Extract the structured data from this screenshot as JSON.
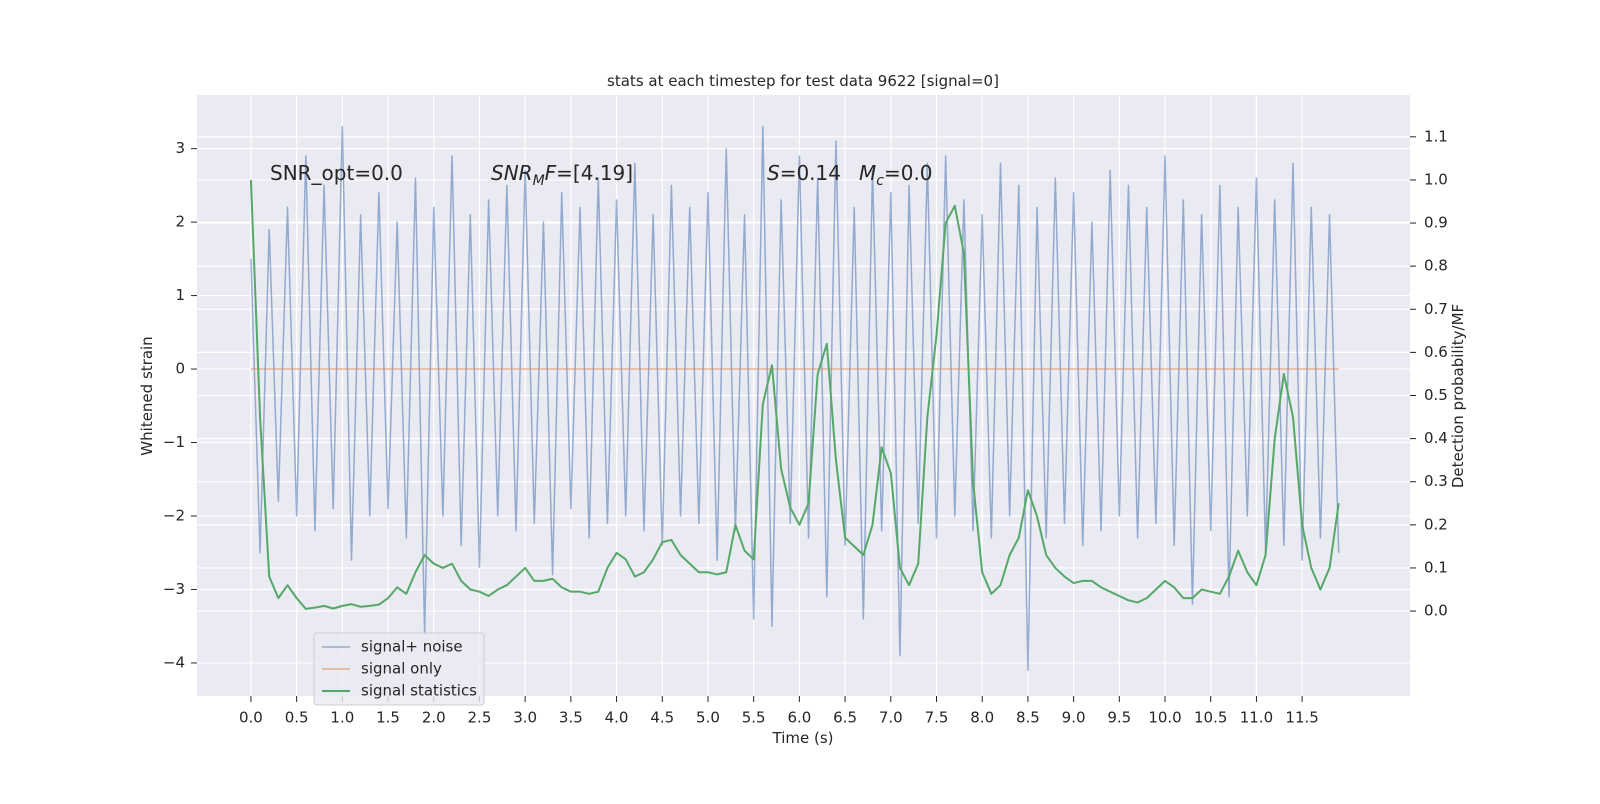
{
  "chart_data": {
    "type": "line",
    "title": "stats at each timestep for test data 9622 [signal=0]",
    "xlabel": "Time (s)",
    "ylabel": "Whitened strain",
    "y2label": "Detection probability/MF",
    "annotations": [
      [
        "SNR_opt=0.0"
      ],
      [
        "SNR",
        "M",
        "F",
        "=[4.19]"
      ],
      [
        "S",
        "=0.14"
      ],
      [
        "M",
        "c",
        "=0.0"
      ]
    ],
    "x": [
      0,
      0.1,
      0.2,
      0.3,
      0.4,
      0.5,
      0.6,
      0.7,
      0.8,
      0.9,
      1,
      1.1,
      1.2,
      1.3,
      1.4,
      1.5,
      1.6,
      1.7,
      1.8,
      1.9,
      2,
      2.1,
      2.2,
      2.3,
      2.4,
      2.5,
      2.6,
      2.7,
      2.8,
      2.9,
      3,
      3.1,
      3.2,
      3.3,
      3.4,
      3.5,
      3.6,
      3.7,
      3.8,
      3.9,
      4,
      4.1,
      4.2,
      4.3,
      4.4,
      4.5,
      4.6,
      4.7,
      4.8,
      4.9,
      5,
      5.1,
      5.2,
      5.3,
      5.4,
      5.5,
      5.6,
      5.7,
      5.8,
      5.9,
      6,
      6.1,
      6.2,
      6.3,
      6.4,
      6.5,
      6.6,
      6.7,
      6.8,
      6.9,
      7,
      7.1,
      7.2,
      7.3,
      7.4,
      7.5,
      7.6,
      7.7,
      7.8,
      7.9,
      8,
      8.1,
      8.2,
      8.3,
      8.4,
      8.5,
      8.6,
      8.7,
      8.8,
      8.9,
      9,
      9.1,
      9.2,
      9.3,
      9.4,
      9.5,
      9.6,
      9.7,
      9.8,
      9.9,
      10,
      10.1,
      10.2,
      10.3,
      10.4,
      10.5,
      10.6,
      10.7,
      10.8,
      10.9,
      11,
      11.1,
      11.2,
      11.3,
      11.4,
      11.5,
      11.6,
      11.7,
      11.8,
      11.9
    ],
    "series": [
      {
        "name": "signal+ noise",
        "color": "#4c72b0",
        "values": [
          1.5,
          -2.5,
          1.9,
          -1.8,
          2.2,
          -2.0,
          2.9,
          -2.2,
          2.5,
          -1.9,
          3.3,
          -2.6,
          2.1,
          -2.0,
          2.4,
          -1.9,
          2.0,
          -2.3,
          2.6,
          -3.6,
          2.2,
          -2.0,
          2.9,
          -2.4,
          2.1,
          -2.7,
          2.3,
          -2.0,
          2.5,
          -2.2,
          2.7,
          -2.1,
          2.0,
          -2.8,
          2.4,
          -1.9,
          2.2,
          -2.3,
          2.6,
          -2.1,
          2.3,
          -2.0,
          2.8,
          -2.2,
          2.1,
          -2.4,
          2.5,
          -2.0,
          2.2,
          -2.1,
          2.4,
          -2.6,
          3.0,
          -2.2,
          2.1,
          -3.4,
          3.3,
          -3.5,
          2.3,
          -2.1,
          2.9,
          -2.3,
          2.6,
          -3.1,
          3.1,
          -2.4,
          2.2,
          -3.4,
          2.7,
          -2.2,
          2.4,
          -3.9,
          2.5,
          -2.1,
          2.8,
          -2.3,
          2.9,
          -2.0,
          2.3,
          -2.2,
          2.1,
          -2.3,
          2.8,
          -2.0,
          2.5,
          -4.1,
          2.2,
          -2.3,
          2.6,
          -2.1,
          2.4,
          -2.4,
          2.0,
          -2.2,
          2.7,
          -2.0,
          2.5,
          -2.3,
          2.2,
          -2.1,
          2.9,
          -2.4,
          2.3,
          -3.2,
          2.1,
          -2.2,
          2.5,
          -3.1,
          2.2,
          -2.0,
          2.6,
          -2.5,
          2.3,
          -2.4,
          2.8,
          -2.6,
          2.2,
          -2.3,
          2.1,
          -2.5
        ]
      },
      {
        "name": "signal only",
        "color": "#dd8452",
        "values": [
          0,
          0,
          0,
          0,
          0,
          0,
          0,
          0,
          0,
          0,
          0,
          0,
          0,
          0,
          0,
          0,
          0,
          0,
          0,
          0,
          0,
          0,
          0,
          0,
          0,
          0,
          0,
          0,
          0,
          0,
          0,
          0,
          0,
          0,
          0,
          0,
          0,
          0,
          0,
          0,
          0,
          0,
          0,
          0,
          0,
          0,
          0,
          0,
          0,
          0,
          0,
          0,
          0,
          0,
          0,
          0,
          0,
          0,
          0,
          0,
          0,
          0,
          0,
          0,
          0,
          0,
          0,
          0,
          0,
          0,
          0,
          0,
          0,
          0,
          0,
          0,
          0,
          0,
          0,
          0,
          0,
          0,
          0,
          0,
          0,
          0,
          0,
          0,
          0,
          0,
          0,
          0,
          0,
          0,
          0,
          0,
          0,
          0,
          0,
          0,
          0,
          0,
          0,
          0,
          0,
          0,
          0,
          0,
          0,
          0,
          0,
          0,
          0,
          0,
          0,
          0,
          0,
          0,
          0,
          0
        ]
      },
      {
        "name": "signal statistics",
        "color": "#55a868",
        "axis": "y2",
        "values": [
          1.0,
          0.45,
          0.08,
          0.03,
          0.06,
          0.03,
          0.005,
          0.008,
          0.012,
          0.006,
          0.012,
          0.016,
          0.01,
          0.012,
          0.015,
          0.03,
          0.055,
          0.04,
          0.09,
          0.13,
          0.11,
          0.1,
          0.11,
          0.07,
          0.05,
          0.045,
          0.035,
          0.05,
          0.06,
          0.08,
          0.1,
          0.07,
          0.07,
          0.075,
          0.055,
          0.045,
          0.045,
          0.04,
          0.045,
          0.1,
          0.135,
          0.12,
          0.08,
          0.09,
          0.12,
          0.16,
          0.165,
          0.13,
          0.11,
          0.09,
          0.09,
          0.085,
          0.09,
          0.2,
          0.14,
          0.12,
          0.48,
          0.57,
          0.33,
          0.24,
          0.2,
          0.25,
          0.55,
          0.62,
          0.35,
          0.17,
          0.15,
          0.13,
          0.2,
          0.38,
          0.32,
          0.1,
          0.06,
          0.11,
          0.45,
          0.64,
          0.9,
          0.94,
          0.83,
          0.3,
          0.09,
          0.04,
          0.06,
          0.13,
          0.17,
          0.28,
          0.22,
          0.13,
          0.1,
          0.08,
          0.065,
          0.07,
          0.07,
          0.055,
          0.045,
          0.035,
          0.025,
          0.02,
          0.03,
          0.05,
          0.07,
          0.055,
          0.03,
          0.03,
          0.05,
          0.045,
          0.04,
          0.08,
          0.14,
          0.09,
          0.06,
          0.13,
          0.4,
          0.55,
          0.45,
          0.2,
          0.1,
          0.05,
          0.1,
          0.25
        ]
      }
    ],
    "xlim": [
      -0.59,
      12.68
    ],
    "ylim": [
      -4.45,
      3.73
    ],
    "y2lim": [
      -0.197,
      1.197
    ],
    "xticks": [
      {
        "value": 0,
        "label": "0.0"
      },
      0.5,
      {
        "value": 1,
        "label": "1.0"
      },
      1.5,
      {
        "value": 2,
        "label": "2.0"
      },
      2.5,
      {
        "value": 3,
        "label": "3.0"
      },
      3.5,
      {
        "value": 4,
        "label": "4.0"
      },
      4.5,
      {
        "value": 5,
        "label": "5.0"
      },
      5.5,
      {
        "value": 6,
        "label": "6.0"
      },
      6.5,
      {
        "value": 7,
        "label": "7.0"
      },
      7.5,
      {
        "value": 8,
        "label": "8.0"
      },
      8.5,
      {
        "value": 9,
        "label": "9.0"
      },
      9.5,
      {
        "value": 10,
        "label": "10.0"
      },
      10.5,
      {
        "value": 11,
        "label": "11.0"
      },
      11.5
    ],
    "yticks": [
      {
        "value": -4,
        "label": "−4"
      },
      {
        "value": -3,
        "label": "−3"
      },
      {
        "value": -2,
        "label": "−2"
      },
      {
        "value": -1,
        "label": "−1"
      },
      0,
      1,
      2,
      3
    ],
    "y2ticks": [
      {
        "value": 0,
        "label": "0.0"
      },
      0.1,
      0.2,
      0.3,
      0.4,
      0.5,
      0.6,
      0.7,
      0.8,
      0.9,
      {
        "value": 1,
        "label": "1.0"
      },
      1.1
    ],
    "grid": true,
    "legend": "lower left"
  }
}
